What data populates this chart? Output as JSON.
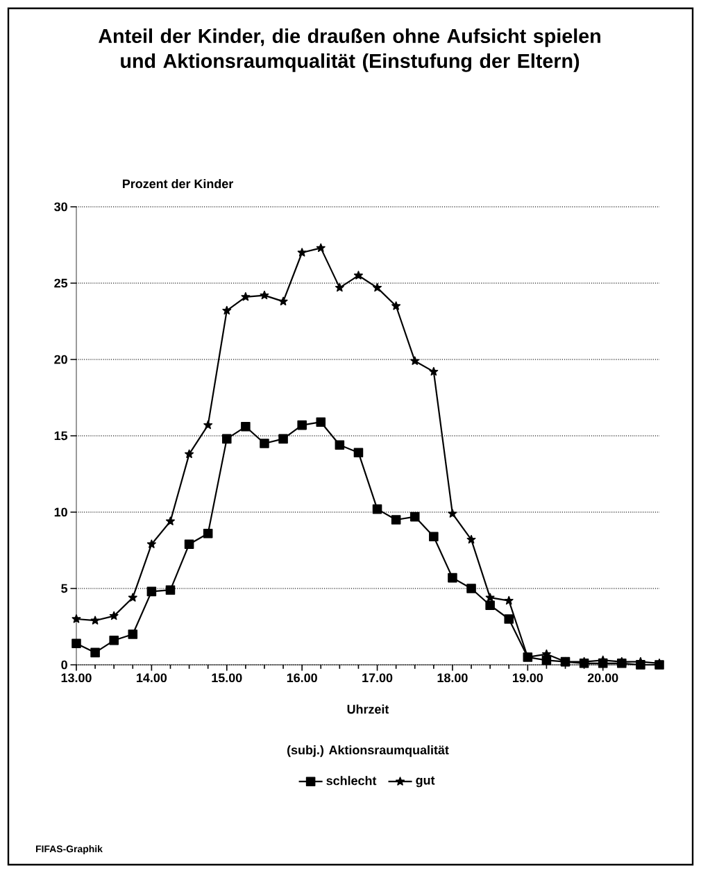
{
  "chart_data": {
    "type": "line",
    "title": "Anteil der Kinder, die draußen ohne Aufsicht spielen und Aktionsraumqualität (Einstufung der Eltern)",
    "xlabel": "Uhrzeit",
    "ylabel": "Prozent der Kinder",
    "legend_title": "(subj.) Aktionsraumqualität",
    "annotations": [
      "FIFAS-Graphik"
    ],
    "x": [
      13.0,
      13.25,
      13.5,
      13.75,
      14.0,
      14.25,
      14.5,
      14.75,
      15.0,
      15.25,
      15.5,
      15.75,
      16.0,
      16.25,
      16.5,
      16.75,
      17.0,
      17.25,
      17.5,
      17.75,
      18.0,
      18.25,
      18.5,
      18.75,
      19.0,
      19.25,
      19.5,
      19.75,
      20.0,
      20.25,
      20.5,
      20.75
    ],
    "series": [
      {
        "name": "schlecht",
        "color": "#000000",
        "marker": "square",
        "values": [
          1.4,
          0.8,
          1.6,
          2.0,
          4.8,
          4.9,
          7.9,
          8.6,
          14.8,
          15.6,
          14.5,
          14.8,
          15.7,
          15.9,
          14.4,
          13.9,
          10.2,
          9.5,
          9.7,
          8.4,
          5.7,
          5.0,
          3.9,
          3.0,
          0.5,
          0.3,
          0.2,
          0.1,
          0.1,
          0.1,
          0.0,
          0.0
        ]
      },
      {
        "name": "gut",
        "color": "#000000",
        "marker": "star",
        "values": [
          3.0,
          2.9,
          3.2,
          4.4,
          7.9,
          9.4,
          13.8,
          15.7,
          23.2,
          24.1,
          24.2,
          23.8,
          27.0,
          27.3,
          24.7,
          25.5,
          24.7,
          23.5,
          19.9,
          19.2,
          9.9,
          8.2,
          4.4,
          4.2,
          0.5,
          0.7,
          0.2,
          0.2,
          0.3,
          0.2,
          0.2,
          0.1
        ]
      }
    ],
    "xlim": [
      13,
      20.75
    ],
    "xticks": [
      {
        "value": 13,
        "label": "13.00"
      },
      {
        "value": 14,
        "label": "14.00"
      },
      {
        "value": 15,
        "label": "15.00"
      },
      {
        "value": 16,
        "label": "16.00"
      },
      {
        "value": 17,
        "label": "17.00"
      },
      {
        "value": 18,
        "label": "18.00"
      },
      {
        "value": 19,
        "label": "19.00"
      },
      {
        "value": 20,
        "label": "20.00"
      }
    ],
    "ylim": [
      0,
      30
    ],
    "yticks": [
      0,
      5,
      10,
      15,
      20,
      25,
      30
    ],
    "grid": "y",
    "legend": "bottom",
    "line_style": "solid"
  }
}
